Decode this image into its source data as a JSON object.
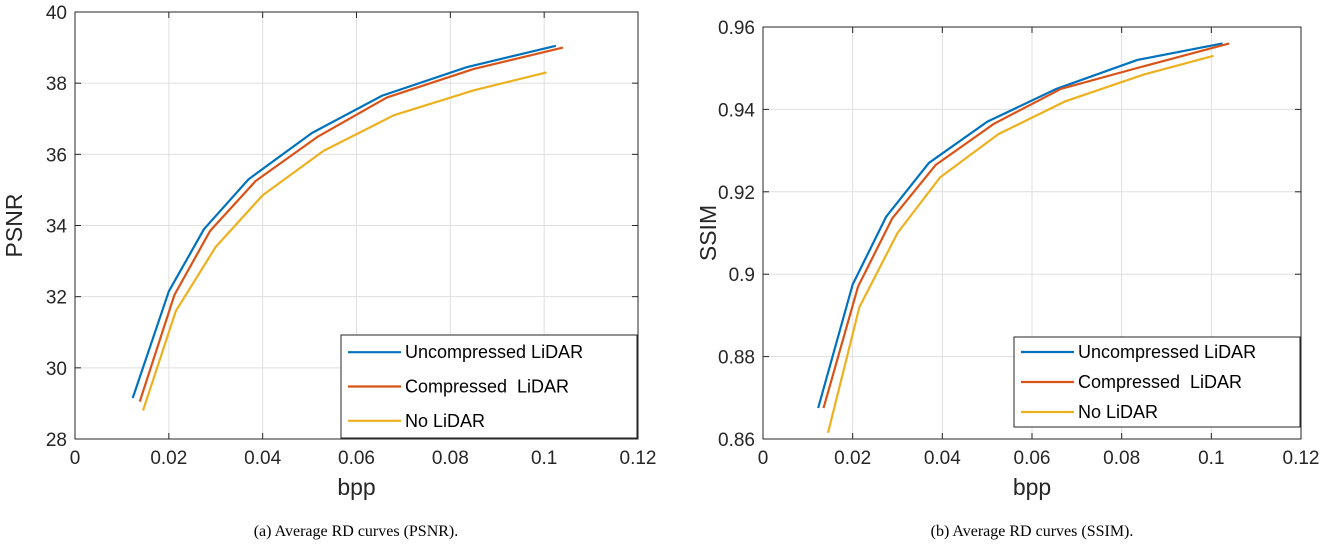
{
  "chart_data": [
    {
      "type": "line",
      "caption": "(a) Average RD curves (PSNR).",
      "xlabel": "bpp",
      "ylabel": "PSNR",
      "xlim": [
        0,
        0.12
      ],
      "ylim": [
        28,
        40
      ],
      "xticks": [
        0,
        0.02,
        0.04,
        0.06,
        0.08,
        0.1,
        0.12
      ],
      "xtick_labels": [
        "0",
        "0.02",
        "0.04",
        "0.06",
        "0.08",
        "0.1",
        "0.12"
      ],
      "yticks": [
        28,
        30,
        32,
        34,
        36,
        38,
        40
      ],
      "ytick_labels": [
        "28",
        "30",
        "32",
        "34",
        "36",
        "38",
        "40"
      ],
      "grid": true,
      "legend_position": "bottom-right",
      "series": [
        {
          "name": "Uncompressed LiDAR",
          "color": "#0072BD",
          "x": [
            0.0123,
            0.02,
            0.0275,
            0.037,
            0.0505,
            0.0655,
            0.0835,
            0.1025
          ],
          "y": [
            29.15,
            32.15,
            33.9,
            35.3,
            36.6,
            37.65,
            38.45,
            39.05
          ]
        },
        {
          "name": "Compressed  LiDAR",
          "color": "#D95319",
          "x": [
            0.0138,
            0.0212,
            0.0288,
            0.0385,
            0.0518,
            0.0665,
            0.085,
            0.104
          ],
          "y": [
            29.05,
            32.05,
            33.85,
            35.25,
            36.5,
            37.6,
            38.4,
            39.0
          ]
        },
        {
          "name": "No LiDAR",
          "color": "#EDB120",
          "x": [
            0.0145,
            0.0215,
            0.03,
            0.04,
            0.053,
            0.068,
            0.085,
            0.1005
          ],
          "y": [
            28.8,
            31.6,
            33.4,
            34.85,
            36.1,
            37.1,
            37.8,
            38.3
          ]
        }
      ]
    },
    {
      "type": "line",
      "caption": "(b) Average RD curves (SSIM).",
      "xlabel": "bpp",
      "ylabel": "SSIM",
      "xlim": [
        0,
        0.12
      ],
      "ylim": [
        0.86,
        0.96
      ],
      "xticks": [
        0,
        0.02,
        0.04,
        0.06,
        0.08,
        0.1,
        0.12
      ],
      "xtick_labels": [
        "0",
        "0.02",
        "0.04",
        "0.06",
        "0.08",
        "0.1",
        "0.12"
      ],
      "yticks": [
        0.86,
        0.88,
        0.9,
        0.92,
        0.94,
        0.96
      ],
      "ytick_labels": [
        "0.86",
        "0.88",
        "0.9",
        "0.92",
        "0.94",
        "0.96"
      ],
      "grid": true,
      "legend_position": "bottom-right",
      "series": [
        {
          "name": "Uncompressed LiDAR",
          "color": "#0072BD",
          "x": [
            0.0123,
            0.02,
            0.0275,
            0.037,
            0.05,
            0.0655,
            0.0835,
            0.1025
          ],
          "y": [
            0.8675,
            0.8975,
            0.914,
            0.927,
            0.937,
            0.945,
            0.952,
            0.956
          ]
        },
        {
          "name": "Compressed  LiDAR",
          "color": "#D95319",
          "x": [
            0.0135,
            0.0212,
            0.0288,
            0.0385,
            0.0515,
            0.0665,
            0.085,
            0.104
          ],
          "y": [
            0.8675,
            0.897,
            0.9135,
            0.9265,
            0.9365,
            0.945,
            0.9505,
            0.956
          ]
        },
        {
          "name": "No LiDAR",
          "color": "#EDB120",
          "x": [
            0.0145,
            0.0215,
            0.03,
            0.0395,
            0.0525,
            0.0675,
            0.085,
            0.1005
          ],
          "y": [
            0.8615,
            0.892,
            0.91,
            0.9235,
            0.934,
            0.942,
            0.9485,
            0.953
          ]
        }
      ]
    }
  ]
}
